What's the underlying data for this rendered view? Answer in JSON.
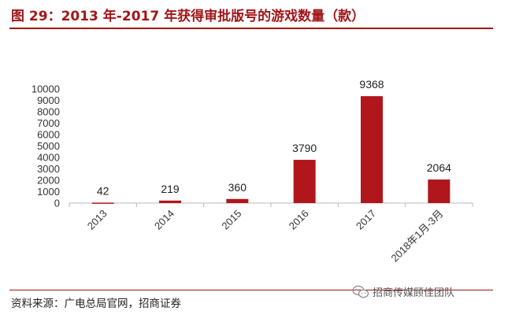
{
  "title": "图 29：2013 年-2017 年获得审批版号的游戏数量（款）",
  "source": "资料来源：广电总局官网，招商证券",
  "watermark": "招商传媒顾佳团队",
  "colors": {
    "accent": "#a31518",
    "bar": "#b0161b"
  },
  "chart_data": {
    "type": "bar",
    "categories": [
      "2013",
      "2014",
      "2015",
      "2016",
      "2017",
      "2018年1月-3月"
    ],
    "values": [
      42,
      219,
      360,
      3790,
      9368,
      2064
    ],
    "ylim": [
      0,
      10000
    ],
    "yticks": [
      0,
      1000,
      2000,
      3000,
      4000,
      5000,
      6000,
      7000,
      8000,
      9000,
      10000
    ],
    "data_labels": [
      "42",
      "219",
      "360",
      "3790",
      "9368",
      "2064"
    ],
    "grid": false,
    "legend": "none"
  }
}
